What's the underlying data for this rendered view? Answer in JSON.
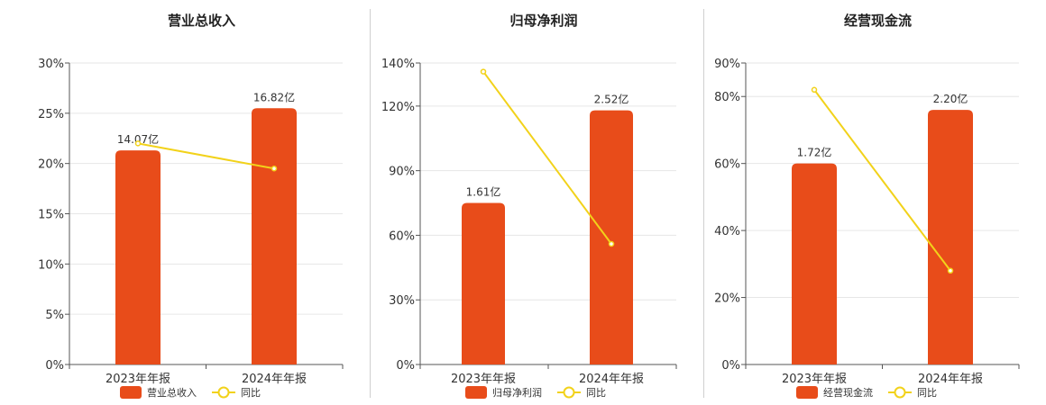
{
  "colors": {
    "bar": "#E84C1A",
    "line": "#F2D21A",
    "grid": "#e6e6e6",
    "axis": "#555555"
  },
  "chart_data": [
    {
      "type": "bar",
      "title": "营业总收入",
      "categories": [
        "2023年年报",
        "2024年年报"
      ],
      "series": [
        {
          "name": "营业总收入",
          "type": "bar",
          "values": [
            21.3,
            25.5
          ],
          "labels": [
            "14.07亿",
            "16.82亿"
          ]
        },
        {
          "name": "同比",
          "type": "line",
          "values": [
            22.0,
            19.5
          ]
        }
      ],
      "yticks": [
        "0%",
        "5%",
        "10%",
        "15%",
        "20%",
        "25%",
        "30%"
      ],
      "ylim": [
        0,
        30
      ],
      "grid": true,
      "legend": "bottom"
    },
    {
      "type": "bar",
      "title": "归母净利润",
      "categories": [
        "2023年年报",
        "2024年年报"
      ],
      "series": [
        {
          "name": "归母净利润",
          "type": "bar",
          "values": [
            75,
            118
          ],
          "labels": [
            "1.61亿",
            "2.52亿"
          ]
        },
        {
          "name": "同比",
          "type": "line",
          "values": [
            136,
            56
          ]
        }
      ],
      "yticks": [
        "0%",
        "30%",
        "60%",
        "90%",
        "120%",
        "140%"
      ],
      "ylim": [
        0,
        140
      ],
      "grid": true,
      "legend": "bottom"
    },
    {
      "type": "bar",
      "title": "经营现金流",
      "categories": [
        "2023年年报",
        "2024年年报"
      ],
      "series": [
        {
          "name": "经营现金流",
          "type": "bar",
          "values": [
            60,
            76
          ],
          "labels": [
            "1.72亿",
            "2.20亿"
          ]
        },
        {
          "name": "同比",
          "type": "line",
          "values": [
            82,
            28
          ]
        }
      ],
      "yticks": [
        "0%",
        "20%",
        "40%",
        "60%",
        "80%",
        "90%"
      ],
      "ylim": [
        0,
        90
      ],
      "grid": true,
      "legend": "bottom"
    }
  ]
}
